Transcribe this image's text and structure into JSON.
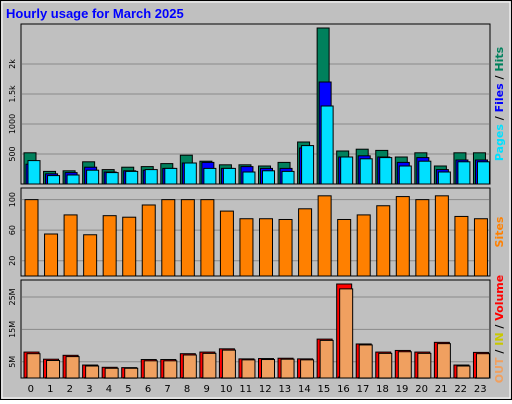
{
  "title": "Hourly usage for March 2025",
  "colors": {
    "background": "#c0c0c0",
    "panel": "#c0c0c0",
    "grid": "#8a8a8a",
    "hits": "#00805c",
    "files": "#0000ff",
    "pages": "#00e0ff",
    "sites": "#ff8000",
    "volume": "#ff0000",
    "kbin": "#c8c800",
    "kbout": "#f0a060",
    "title": "#0000ff"
  },
  "chart_data": [
    {
      "type": "bar",
      "name": "top",
      "categories": [
        "0",
        "1",
        "2",
        "3",
        "4",
        "5",
        "6",
        "7",
        "8",
        "9",
        "10",
        "11",
        "12",
        "13",
        "14",
        "15",
        "16",
        "17",
        "18",
        "19",
        "20",
        "21",
        "22",
        "23"
      ],
      "ylim": [
        0,
        2600
      ],
      "yticks": [
        "500",
        "1000",
        "1.5k",
        "2k"
      ],
      "ytick_values": [
        500,
        1000,
        1500,
        2000
      ],
      "legend": [
        {
          "text": "Hits",
          "color": "#00805c"
        },
        {
          "text": "Files",
          "color": "#0000ff"
        },
        {
          "text": "Pages",
          "color": "#00e0ff"
        }
      ],
      "legend_separators": [
        "/",
        "/",
        "_"
      ],
      "series": [
        {
          "name": "Hits",
          "values": [
            520,
            210,
            220,
            370,
            240,
            280,
            290,
            340,
            480,
            380,
            320,
            320,
            300,
            360,
            700,
            2600,
            550,
            580,
            560,
            450,
            520,
            300,
            520,
            520
          ]
        },
        {
          "name": "Files",
          "values": [
            330,
            170,
            190,
            280,
            200,
            220,
            230,
            260,
            350,
            360,
            260,
            290,
            260,
            260,
            600,
            1700,
            450,
            470,
            450,
            360,
            440,
            240,
            400,
            400
          ]
        },
        {
          "name": "Pages",
          "values": [
            390,
            140,
            150,
            230,
            190,
            210,
            240,
            260,
            350,
            260,
            260,
            200,
            220,
            210,
            640,
            1300,
            450,
            420,
            440,
            300,
            380,
            200,
            370,
            370
          ]
        }
      ]
    },
    {
      "type": "bar",
      "name": "middle",
      "categories": [
        "0",
        "1",
        "2",
        "3",
        "4",
        "5",
        "6",
        "7",
        "8",
        "9",
        "10",
        "11",
        "12",
        "13",
        "14",
        "15",
        "16",
        "17",
        "18",
        "19",
        "20",
        "21",
        "22",
        "23"
      ],
      "ylim": [
        0,
        110
      ],
      "yticks": [
        "20",
        "60",
        "100"
      ],
      "ytick_values": [
        20,
        60,
        100
      ],
      "legend": [
        {
          "text": "Sites",
          "color": "#ff8000"
        }
      ],
      "series": [
        {
          "name": "Sites",
          "values": [
            100,
            55,
            80,
            54,
            79,
            77,
            93,
            100,
            100,
            100,
            85,
            75,
            75,
            74,
            88,
            105,
            74,
            80,
            92,
            104,
            100,
            105,
            78,
            75
          ]
        }
      ]
    },
    {
      "type": "bar",
      "name": "bottom",
      "categories": [
        "0",
        "1",
        "2",
        "3",
        "4",
        "5",
        "6",
        "7",
        "8",
        "9",
        "10",
        "11",
        "12",
        "13",
        "14",
        "15",
        "16",
        "17",
        "18",
        "19",
        "20",
        "21",
        "22",
        "23"
      ],
      "ylim": [
        0,
        29
      ],
      "yticks": [
        "5M",
        "15M",
        "25M"
      ],
      "ytick_values": [
        5,
        15,
        25
      ],
      "legend": [
        {
          "text": "Volume",
          "color": "#ff0000"
        },
        {
          "text": "IN",
          "color": "#c8c800"
        },
        {
          "text": "OUT",
          "color": "#f0a060"
        }
      ],
      "legend_separators": [
        "/",
        "/",
        ""
      ],
      "series": [
        {
          "name": "Volume",
          "values": [
            8.0,
            5.8,
            7.0,
            4.0,
            3.3,
            3.2,
            5.7,
            5.7,
            7.5,
            8.0,
            9.0,
            5.9,
            6.0,
            6.1,
            5.9,
            12.0,
            29,
            10.5,
            8.0,
            8.5,
            8.0,
            11.0,
            4.0,
            7.9
          ]
        },
        {
          "name": "IN",
          "values": [
            0.2,
            0.1,
            0.1,
            0.1,
            0.1,
            0.1,
            0.1,
            0.1,
            0.1,
            0.1,
            0.1,
            0.1,
            0.1,
            0.1,
            0.1,
            0.2,
            0.3,
            0.1,
            0.1,
            0.1,
            0.1,
            0.1,
            0.1,
            0.1
          ]
        },
        {
          "name": "OUT",
          "values": [
            7.5,
            5.4,
            6.6,
            3.7,
            3.0,
            3.0,
            5.3,
            5.3,
            7.1,
            7.6,
            8.6,
            5.6,
            5.7,
            5.8,
            5.6,
            11.6,
            27.5,
            10.2,
            7.6,
            8.1,
            7.6,
            10.6,
            3.7,
            7.5
          ]
        }
      ]
    }
  ]
}
